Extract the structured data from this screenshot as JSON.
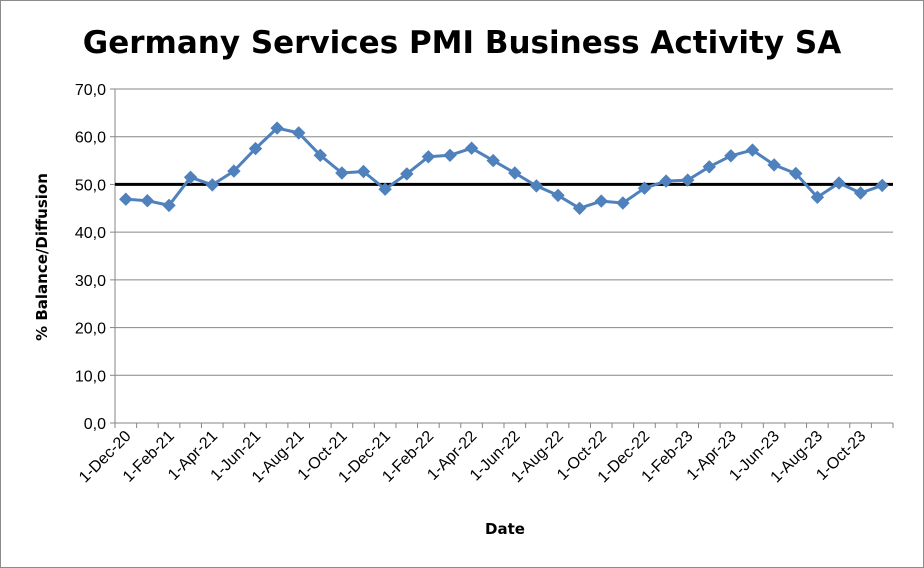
{
  "chart_data": {
    "type": "line",
    "title": "Germany Services PMI Business Activity SA",
    "xlabel": "Date",
    "ylabel": "% Balance/Diffusion",
    "ylim": [
      0,
      70
    ],
    "y_ticks": [
      "0,0",
      "10,0",
      "20,0",
      "30,0",
      "40,0",
      "50,0",
      "60,0",
      "70,0"
    ],
    "grid": "horizontal",
    "legend": "none",
    "reference_line": {
      "value": 50,
      "color": "#000000"
    },
    "x_tick_labels": [
      "1-Dec-20",
      "1-Feb-21",
      "1-Apr-21",
      "1-Jun-21",
      "1-Aug-21",
      "1-Oct-21",
      "1-Dec-21",
      "1-Feb-22",
      "1-Apr-22",
      "1-Jun-22",
      "1-Aug-22",
      "1-Oct-22",
      "1-Dec-22",
      "1-Feb-23",
      "1-Apr-23",
      "1-Jun-23",
      "1-Aug-23",
      "1-Oct-23"
    ],
    "series": [
      {
        "color": "#4f81bd",
        "marker": "diamond",
        "x": [
          "1-Dec-20",
          "1-Jan-21",
          "1-Feb-21",
          "1-Mar-21",
          "1-Apr-21",
          "1-May-21",
          "1-Jun-21",
          "1-Jul-21",
          "1-Aug-21",
          "1-Sep-21",
          "1-Oct-21",
          "1-Nov-21",
          "1-Dec-21",
          "1-Jan-22",
          "1-Feb-22",
          "1-Mar-22",
          "1-Apr-22",
          "1-May-22",
          "1-Jun-22",
          "1-Jul-22",
          "1-Aug-22",
          "1-Sep-22",
          "1-Oct-22",
          "1-Nov-22",
          "1-Dec-22",
          "1-Jan-23",
          "1-Feb-23",
          "1-Mar-23",
          "1-Apr-23",
          "1-May-23",
          "1-Jun-23",
          "1-Jul-23",
          "1-Aug-23",
          "1-Sep-23",
          "1-Oct-23",
          "1-Nov-23"
        ],
        "values": [
          46.9,
          46.6,
          45.6,
          51.5,
          49.9,
          52.8,
          57.5,
          61.8,
          60.8,
          56.1,
          52.4,
          52.7,
          49.0,
          52.2,
          55.8,
          56.1,
          57.6,
          55.0,
          52.4,
          49.7,
          47.7,
          45.0,
          46.5,
          46.1,
          49.2,
          50.7,
          50.9,
          53.7,
          56.0,
          57.2,
          54.1,
          52.3,
          47.3,
          50.3,
          48.2,
          49.8
        ]
      }
    ]
  }
}
